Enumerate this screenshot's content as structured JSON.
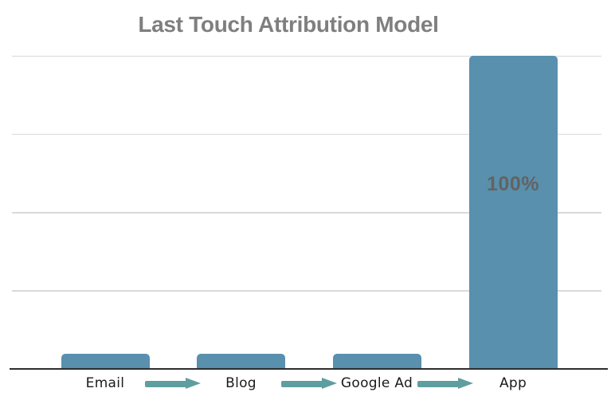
{
  "chart_data": {
    "type": "bar",
    "title": "Last Touch Attribution Model",
    "categories": [
      "Email",
      "Blog",
      "Google Ad",
      "App"
    ],
    "values": [
      0,
      0,
      0,
      100
    ],
    "rendered_bar_heights_pct": [
      4.8,
      4.8,
      4.8,
      100
    ],
    "data_labels": [
      "",
      "",
      "",
      "100%"
    ],
    "unit": "%",
    "ylim": [
      0,
      100
    ],
    "y_axis_tick_labels_visible": false,
    "gridline_values": [
      0,
      25,
      50,
      75,
      100
    ],
    "grid": true,
    "legend": "none",
    "xlabel": "",
    "ylabel": "",
    "flow_arrows": {
      "between_categories": true,
      "count": 3,
      "direction": "right"
    }
  },
  "colors": {
    "bar": "#5890ad",
    "flow_arrow": "#5f9e9e",
    "title": "#7f7f7f",
    "value_label": "#636363",
    "gridline": "#d9d9d9",
    "axis_line": "#2e2e2e",
    "category_label": "#1a1a1a",
    "background": "#ffffff"
  }
}
